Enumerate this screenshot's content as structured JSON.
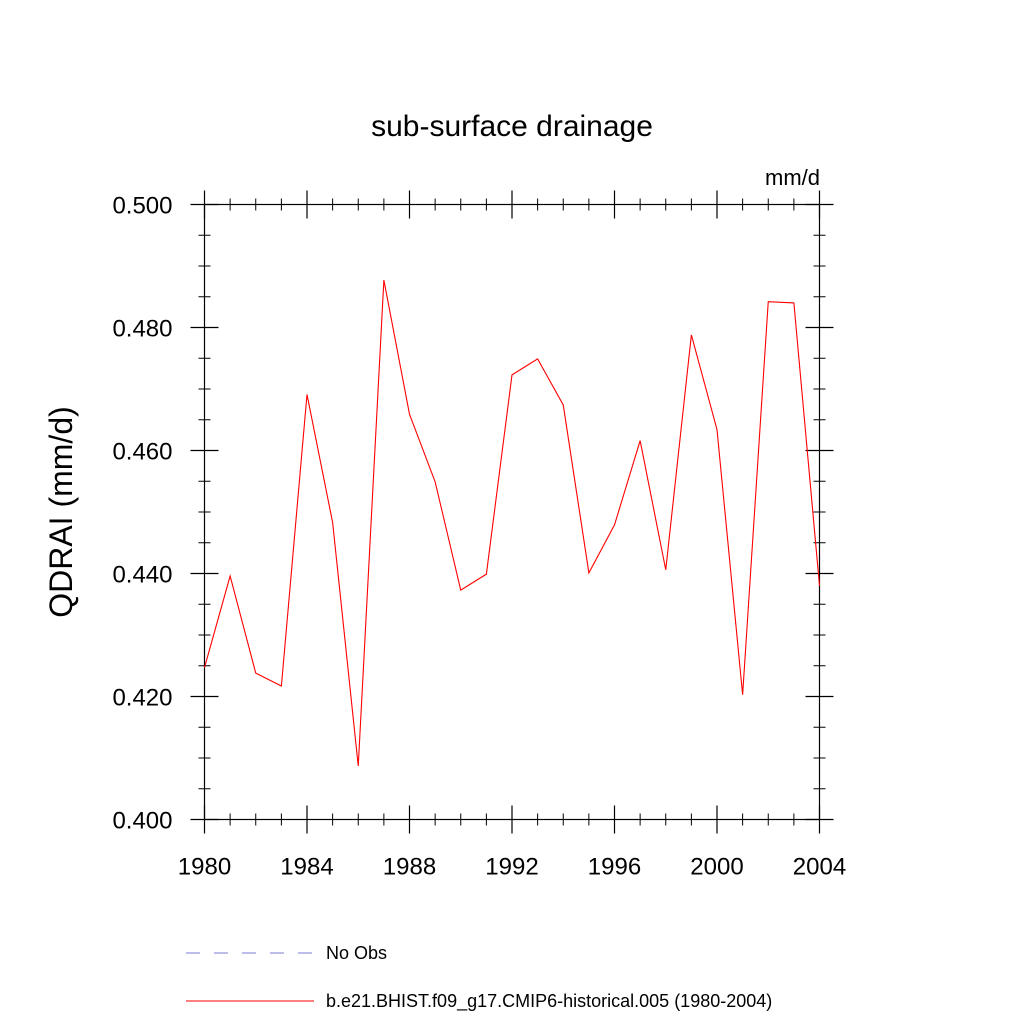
{
  "chart_data": {
    "type": "line",
    "title": "sub-surface drainage",
    "units_label": "mm/d",
    "ylabel": "QDRAI  (mm/d)",
    "xlabel": "",
    "xlim": [
      1980,
      2004
    ],
    "ylim": [
      0.4,
      0.5
    ],
    "x_ticks": [
      1980,
      1984,
      1988,
      1992,
      1996,
      2000,
      2004
    ],
    "x_tick_labels": [
      "1980",
      "1984",
      "1988",
      "1992",
      "1996",
      "2000",
      "2004"
    ],
    "y_ticks": [
      0.4,
      0.42,
      0.44,
      0.46,
      0.48,
      0.5
    ],
    "y_tick_labels": [
      "0.400",
      "0.420",
      "0.440",
      "0.460",
      "0.480",
      "0.500"
    ],
    "grid": false,
    "legend_position": "bottom",
    "series": [
      {
        "name": "b.e21.BHIST.f09_g17.CMIP6-historical.005 (1980-2004)",
        "color": "#ff0000",
        "x": [
          1980,
          1981,
          1982,
          1983,
          1984,
          1985,
          1986,
          1987,
          1988,
          1989,
          1990,
          1991,
          1992,
          1993,
          1994,
          1995,
          1996,
          1997,
          1998,
          1999,
          2000,
          2001,
          2002,
          2003,
          2004
        ],
        "values": [
          0.4247,
          0.4396,
          0.4238,
          0.4217,
          0.4691,
          0.4483,
          0.4087,
          0.4877,
          0.4659,
          0.4549,
          0.4373,
          0.4399,
          0.4723,
          0.4749,
          0.4674,
          0.4401,
          0.4479,
          0.4616,
          0.4406,
          0.4788,
          0.4634,
          0.4203,
          0.4842,
          0.484,
          0.438
        ]
      }
    ],
    "legend": [
      {
        "label": "No Obs",
        "color": "#7b7bd6",
        "style": "dashed"
      },
      {
        "label": "b.e21.BHIST.f09_g17.CMIP6-historical.005 (1980-2004)",
        "color": "#ff0000",
        "style": "solid"
      }
    ]
  }
}
